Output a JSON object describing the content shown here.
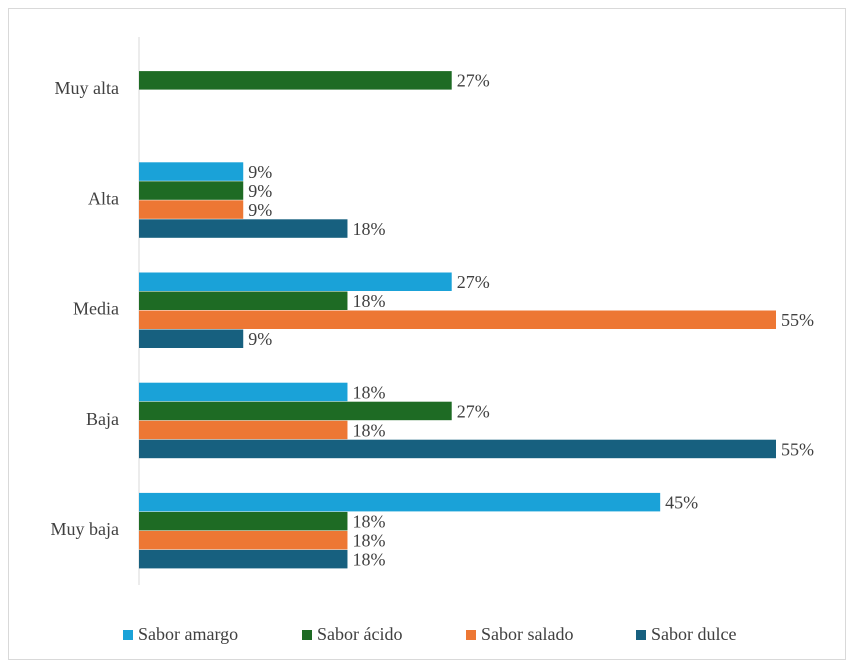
{
  "chart_data": {
    "type": "bar",
    "orientation": "horizontal",
    "categories": [
      "Muy alta",
      "Alta",
      "Media",
      "Baja",
      "Muy baja"
    ],
    "series": [
      {
        "name": "Sabor amargo",
        "color": "#1aa2d8",
        "values": [
          null,
          9,
          27,
          18,
          45
        ],
        "value_labels": [
          null,
          "9%",
          "27%",
          "18%",
          "45%"
        ]
      },
      {
        "name": "Sabor ácido",
        "color": "#1e6b24",
        "values": [
          27,
          9,
          18,
          27,
          18
        ],
        "value_labels": [
          "27%",
          "9%",
          "18%",
          "27%",
          "18%"
        ]
      },
      {
        "name": "Sabor salado",
        "color": "#ed7734",
        "values": [
          null,
          9,
          55,
          18,
          18
        ],
        "value_labels": [
          null,
          "9%",
          "55%",
          "18%",
          "18%"
        ]
      },
      {
        "name": "Sabor dulce",
        "color": "#17607f",
        "values": [
          null,
          18,
          9,
          55,
          18
        ],
        "value_labels": [
          null,
          "18%",
          "9%",
          "55%",
          "18%"
        ]
      }
    ],
    "legend": "bottom"
  }
}
